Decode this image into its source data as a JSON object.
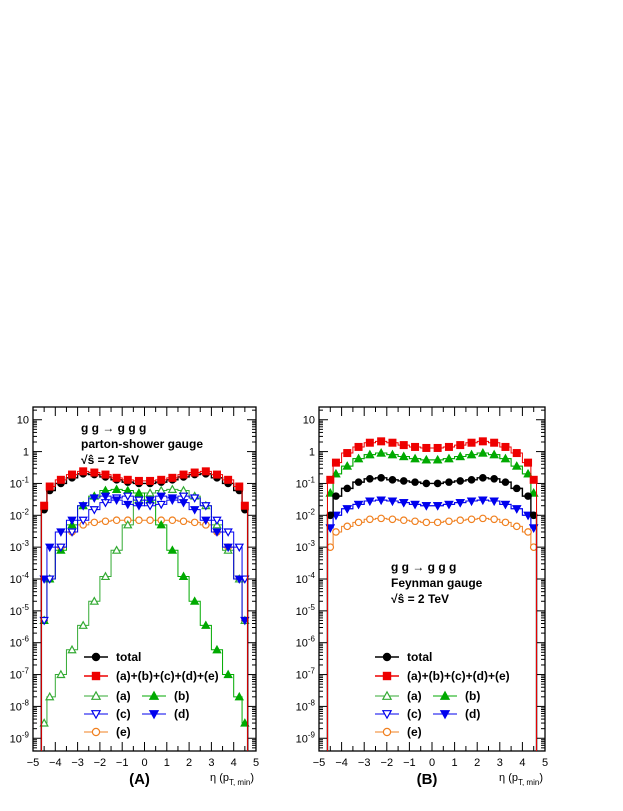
{
  "colors": {
    "total": "#000000",
    "sum": "#ee0000",
    "a": "#33aa33",
    "b": "#00aa00",
    "c": "#0000ee",
    "d": "#0000ee",
    "e": "#f08020"
  },
  "chart_data": [
    {
      "type": "line",
      "panel_label": "(A)",
      "xlabel_main": "η (p",
      "xlabel_sub": "T, min",
      "xlabel_close": ")",
      "x_ticks": [
        "−5",
        "−4",
        "−3",
        "−2",
        "−1",
        "0",
        "1",
        "2",
        "3",
        "4",
        "5"
      ],
      "y_ticks": [
        {
          "base": "10",
          "exp": ""
        },
        {
          "base": "1",
          "exp": ""
        },
        {
          "base": "10",
          "exp": "-1"
        },
        {
          "base": "10",
          "exp": "-2"
        },
        {
          "base": "10",
          "exp": "-3"
        },
        {
          "base": "10",
          "exp": "-4"
        },
        {
          "base": "10",
          "exp": "-5"
        },
        {
          "base": "10",
          "exp": "-6"
        },
        {
          "base": "10",
          "exp": "-7"
        },
        {
          "base": "10",
          "exp": "-8"
        },
        {
          "base": "10",
          "exp": "-9"
        }
      ],
      "xlim": [
        -5,
        5
      ],
      "ylim_log10": [
        -9.4,
        1.4
      ],
      "yscale": "log",
      "annotation": [
        "g g → g g g",
        "parton-shower gauge",
        "√ŝ = 2 TeV"
      ],
      "x": [
        -4.5,
        -4.25,
        -3.75,
        -3.25,
        -2.75,
        -2.25,
        -1.75,
        -1.25,
        -0.75,
        -0.25,
        0.25,
        0.75,
        1.25,
        1.75,
        2.25,
        2.75,
        3.25,
        3.75,
        4.25,
        4.5
      ],
      "series": [
        {
          "key": "total",
          "name": "total",
          "marker": "circle",
          "filled": true,
          "values": [
            0.015,
            0.06,
            0.1,
            0.15,
            0.2,
            0.19,
            0.16,
            0.13,
            0.11,
            0.1,
            0.1,
            0.11,
            0.13,
            0.16,
            0.19,
            0.2,
            0.15,
            0.1,
            0.06,
            0.015
          ]
        },
        {
          "key": "sum",
          "name": "(a)+(b)+(c)+(d)+(e)",
          "marker": "square",
          "filled": true,
          "values": [
            0.02,
            0.08,
            0.13,
            0.19,
            0.24,
            0.22,
            0.19,
            0.15,
            0.13,
            0.12,
            0.12,
            0.13,
            0.15,
            0.19,
            0.22,
            0.24,
            0.19,
            0.13,
            0.08,
            0.02
          ]
        },
        {
          "key": "a",
          "name": "(a)",
          "marker": "triangle-up",
          "filled": false,
          "values": [
            3e-09,
            2e-08,
            1e-07,
            6e-07,
            3.5e-06,
            2e-05,
            0.00012,
            0.0008,
            0.005,
            0.03,
            0.05,
            0.06,
            0.065,
            0.06,
            0.04,
            0.02,
            0.005,
            0.0008,
            0.0001,
            5e-06
          ]
        },
        {
          "key": "b",
          "name": "(b)",
          "marker": "triangle-up",
          "filled": true,
          "values": [
            5e-06,
            0.0001,
            0.0008,
            0.005,
            0.02,
            0.04,
            0.06,
            0.065,
            0.06,
            0.05,
            0.03,
            0.005,
            0.0008,
            0.00012,
            2e-05,
            3.5e-06,
            6e-07,
            1e-07,
            2e-08,
            3e-09
          ]
        },
        {
          "key": "c",
          "name": "(c)",
          "marker": "triangle-down",
          "filled": false,
          "values": [
            5e-06,
            0.0001,
            0.001,
            0.003,
            0.007,
            0.015,
            0.025,
            0.035,
            0.04,
            0.03,
            0.02,
            0.022,
            0.03,
            0.04,
            0.035,
            0.02,
            0.007,
            0.003,
            0.001,
            0.0001
          ]
        },
        {
          "key": "d",
          "name": "(d)",
          "marker": "triangle-down",
          "filled": true,
          "values": [
            0.0001,
            0.001,
            0.003,
            0.007,
            0.02,
            0.035,
            0.04,
            0.03,
            0.022,
            0.02,
            0.03,
            0.04,
            0.035,
            0.025,
            0.015,
            0.007,
            0.003,
            0.001,
            0.0001,
            5e-06
          ]
        },
        {
          "key": "e",
          "name": "(e)",
          "marker": "circle",
          "filled": false,
          "values": [
            5e-06,
            0.0001,
            0.001,
            0.003,
            0.005,
            0.006,
            0.0065,
            0.007,
            0.007,
            0.007,
            0.007,
            0.007,
            0.007,
            0.0065,
            0.006,
            0.005,
            0.003,
            0.001,
            0.0001,
            5e-06
          ]
        }
      ],
      "legend": {
        "placement": "bottom-center",
        "top_row": [
          "total",
          "sum"
        ],
        "grid": [
          [
            "a",
            "b"
          ],
          [
            "c",
            "d"
          ],
          [
            "e"
          ]
        ]
      }
    },
    {
      "type": "line",
      "panel_label": "(B)",
      "xlabel_main": "η (p",
      "xlabel_sub": "T, min",
      "xlabel_close": ")",
      "x_ticks": [
        "−5",
        "−4",
        "−3",
        "−2",
        "−1",
        "0",
        "1",
        "2",
        "3",
        "4",
        "5"
      ],
      "y_ticks": [
        {
          "base": "10",
          "exp": ""
        },
        {
          "base": "1",
          "exp": ""
        },
        {
          "base": "10",
          "exp": "-1"
        },
        {
          "base": "10",
          "exp": "-2"
        },
        {
          "base": "10",
          "exp": "-3"
        },
        {
          "base": "10",
          "exp": "-4"
        },
        {
          "base": "10",
          "exp": "-5"
        },
        {
          "base": "10",
          "exp": "-6"
        },
        {
          "base": "10",
          "exp": "-7"
        },
        {
          "base": "10",
          "exp": "-8"
        },
        {
          "base": "10",
          "exp": "-9"
        }
      ],
      "xlim": [
        -5,
        5
      ],
      "ylim_log10": [
        -9.4,
        1.4
      ],
      "yscale": "log",
      "annotation": [
        "g g → g g g",
        "Feynman gauge",
        "√ŝ = 2 TeV"
      ],
      "x": [
        -4.5,
        -4.25,
        -3.75,
        -3.25,
        -2.75,
        -2.25,
        -1.75,
        -1.25,
        -0.75,
        -0.25,
        0.25,
        0.75,
        1.25,
        1.75,
        2.25,
        2.75,
        3.25,
        3.75,
        4.25,
        4.5
      ],
      "series": [
        {
          "key": "total",
          "name": "total",
          "marker": "circle",
          "filled": true,
          "values": [
            0.01,
            0.04,
            0.07,
            0.11,
            0.14,
            0.15,
            0.13,
            0.12,
            0.11,
            0.1,
            0.1,
            0.11,
            0.12,
            0.13,
            0.15,
            0.14,
            0.11,
            0.07,
            0.04,
            0.01
          ]
        },
        {
          "key": "sum",
          "name": "(a)+(b)+(c)+(d)+(e)",
          "marker": "square",
          "filled": true,
          "values": [
            0.13,
            0.45,
            0.9,
            1.4,
            1.9,
            2.1,
            1.9,
            1.6,
            1.4,
            1.3,
            1.3,
            1.4,
            1.6,
            1.9,
            2.1,
            1.9,
            1.4,
            0.9,
            0.45,
            0.13
          ]
        },
        {
          "key": "a",
          "name": "(a)",
          "marker": "triangle-up",
          "filled": false,
          "values": [
            0.05,
            0.2,
            0.35,
            0.6,
            0.8,
            0.9,
            0.8,
            0.7,
            0.6,
            0.55,
            0.55,
            0.6,
            0.7,
            0.8,
            0.9,
            0.8,
            0.6,
            0.35,
            0.2,
            0.05
          ]
        },
        {
          "key": "b",
          "name": "(b)",
          "marker": "triangle-up",
          "filled": true,
          "values": [
            0.05,
            0.2,
            0.35,
            0.6,
            0.8,
            0.9,
            0.8,
            0.7,
            0.6,
            0.55,
            0.55,
            0.6,
            0.7,
            0.8,
            0.9,
            0.8,
            0.6,
            0.35,
            0.2,
            0.05
          ]
        },
        {
          "key": "c",
          "name": "(c)",
          "marker": "triangle-down",
          "filled": false,
          "values": [
            0.004,
            0.01,
            0.016,
            0.022,
            0.028,
            0.03,
            0.028,
            0.025,
            0.022,
            0.02,
            0.02,
            0.022,
            0.025,
            0.028,
            0.03,
            0.028,
            0.022,
            0.016,
            0.01,
            0.004
          ]
        },
        {
          "key": "d",
          "name": "(d)",
          "marker": "triangle-down",
          "filled": true,
          "values": [
            0.004,
            0.01,
            0.016,
            0.022,
            0.028,
            0.03,
            0.028,
            0.025,
            0.022,
            0.02,
            0.02,
            0.022,
            0.025,
            0.028,
            0.03,
            0.028,
            0.022,
            0.016,
            0.01,
            0.004
          ]
        },
        {
          "key": "e",
          "name": "(e)",
          "marker": "circle",
          "filled": false,
          "values": [
            0.001,
            0.003,
            0.0045,
            0.006,
            0.0075,
            0.008,
            0.0075,
            0.007,
            0.0065,
            0.006,
            0.006,
            0.0065,
            0.007,
            0.0075,
            0.008,
            0.0075,
            0.006,
            0.0045,
            0.003,
            0.001
          ]
        }
      ],
      "legend": {
        "placement": "bottom-center",
        "top_row": [
          "total",
          "sum"
        ],
        "grid": [
          [
            "a",
            "b"
          ],
          [
            "c",
            "d"
          ],
          [
            "e"
          ]
        ]
      }
    }
  ]
}
